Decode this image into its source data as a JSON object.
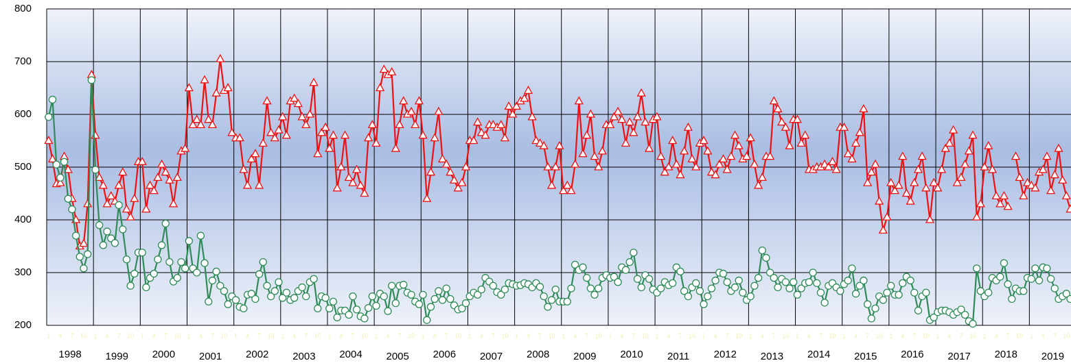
{
  "chart_data": {
    "type": "line",
    "ylim": [
      200,
      800
    ],
    "yticks": [
      200,
      300,
      400,
      500,
      600,
      700,
      800
    ],
    "grid": true,
    "years": [
      "1998",
      "1999",
      "2000",
      "2001",
      "2002",
      "2003",
      "2004",
      "2005",
      "2006",
      "2007",
      "2008",
      "2009",
      "2010",
      "2011",
      "2012",
      "2013",
      "2014",
      "2015",
      "2016",
      "2017",
      "2018",
      "2019"
    ],
    "categories": [
      "1",
      null,
      null,
      "4",
      null,
      null,
      "7",
      null,
      null,
      "10",
      null,
      null,
      "1",
      null,
      null,
      "4",
      null,
      null,
      "7",
      null,
      null,
      "10",
      null,
      null,
      "1",
      null,
      null,
      "4",
      null,
      null,
      "7",
      null,
      null,
      "10",
      null,
      null,
      "1",
      null,
      null,
      "4",
      null,
      null,
      "7",
      null,
      null,
      "10",
      null,
      null,
      "1",
      null,
      null,
      "4",
      null,
      null,
      "7",
      null,
      null,
      "10",
      null,
      null,
      "1",
      null,
      null,
      "4",
      null,
      null,
      "7",
      null,
      null,
      "10",
      null,
      null,
      "1",
      null,
      null,
      "4",
      null,
      null,
      "7",
      null,
      null,
      "10",
      null,
      null,
      "1",
      null,
      null,
      "4",
      null,
      null,
      "7",
      null,
      null,
      "10",
      null,
      null,
      "1",
      null,
      null,
      "4",
      null,
      null,
      "7",
      null,
      null,
      "10",
      null,
      null,
      "1",
      null,
      null,
      "4",
      null,
      null,
      "7",
      null,
      null,
      "10",
      null,
      null,
      "1",
      null,
      null,
      "4",
      null,
      null,
      "7",
      null,
      null,
      "10",
      null,
      null,
      "1",
      null,
      null,
      "4",
      null,
      null,
      "7",
      null,
      null,
      "10",
      null,
      null,
      "1",
      null,
      null,
      "4",
      null,
      null,
      "7",
      null,
      null,
      "10",
      null,
      null,
      "1",
      null,
      null,
      "4",
      null,
      null,
      "7",
      null,
      null,
      "10",
      null,
      null,
      "1",
      null,
      null,
      "4",
      null,
      null,
      "7",
      null,
      null,
      "10",
      null,
      null,
      "1",
      null,
      null,
      "4",
      null,
      null,
      "7",
      null,
      null,
      "10",
      null,
      null,
      "1",
      null,
      null,
      "4",
      null,
      null,
      "7",
      null,
      null,
      "10",
      null,
      null,
      "1",
      null,
      null,
      "4",
      null,
      null,
      "7",
      null,
      null,
      "10",
      null,
      null,
      "1",
      null,
      null,
      "4",
      null,
      null,
      "7",
      null,
      null,
      "10",
      null,
      null,
      "1",
      null,
      null,
      "4",
      null,
      null,
      "7",
      null,
      null,
      "10",
      null,
      null,
      "1",
      null,
      null,
      "4",
      null,
      null,
      "7",
      null,
      null,
      "10",
      null,
      null,
      "1",
      null,
      null,
      "4",
      null,
      null,
      "7",
      null,
      null,
      "10",
      null
    ],
    "series": [
      {
        "color": "#ee1111",
        "marker": "triangle",
        "values": [
          550,
          515,
          468,
          470,
          520,
          495,
          440,
          400,
          350,
          355,
          430,
          675,
          560,
          480,
          465,
          430,
          445,
          435,
          465,
          490,
          420,
          405,
          440,
          510,
          510,
          420,
          465,
          455,
          480,
          505,
          490,
          475,
          430,
          480,
          530,
          535,
          650,
          580,
          590,
          580,
          665,
          590,
          580,
          640,
          705,
          645,
          650,
          565,
          555,
          555,
          495,
          465,
          515,
          525,
          465,
          545,
          625,
          565,
          555,
          570,
          595,
          560,
          625,
          630,
          620,
          595,
          580,
          600,
          660,
          525,
          565,
          575,
          535,
          560,
          460,
          500,
          560,
          480,
          470,
          495,
          465,
          450,
          555,
          580,
          545,
          650,
          685,
          675,
          680,
          535,
          580,
          625,
          600,
          605,
          580,
          625,
          560,
          440,
          490,
          555,
          605,
          515,
          505,
          490,
          475,
          460,
          470,
          500,
          550,
          550,
          585,
          565,
          560,
          580,
          580,
          575,
          580,
          555,
          615,
          600,
          615,
          625,
          630,
          645,
          595,
          550,
          545,
          540,
          500,
          465,
          500,
          540,
          455,
          465,
          455,
          505,
          625,
          525,
          560,
          600,
          520,
          500,
          530,
          580,
          580,
          595,
          605,
          590,
          545,
          585,
          565,
          595,
          640,
          585,
          535,
          590,
          595,
          520,
          490,
          500,
          550,
          505,
          485,
          530,
          575,
          515,
          500,
          545,
          550,
          530,
          490,
          485,
          505,
          515,
          495,
          520,
          560,
          540,
          515,
          520,
          555,
          505,
          465,
          480,
          520,
          520,
          625,
          610,
          585,
          575,
          540,
          590,
          590,
          545,
          560,
          495,
          495,
          500,
          500,
          505,
          500,
          510,
          495,
          575,
          575,
          525,
          515,
          545,
          565,
          610,
          470,
          490,
          505,
          435,
          380,
          405,
          470,
          455,
          465,
          520,
          450,
          435,
          470,
          495,
          520,
          460,
          400,
          470,
          460,
          495,
          535,
          545,
          570,
          470,
          480,
          505,
          530,
          560,
          405,
          430,
          500,
          540,
          495,
          445,
          430,
          445,
          425,
          null,
          520,
          480,
          445,
          470,
          465,
          460,
          490,
          495,
          520,
          455,
          485,
          535,
          475,
          445,
          420
        ]
      },
      {
        "color": "#2e8b57",
        "marker": "circle",
        "values": [
          595,
          628,
          505,
          480,
          510,
          440,
          420,
          370,
          330,
          308,
          335,
          665,
          495,
          390,
          352,
          378,
          365,
          356,
          428,
          382,
          325,
          275,
          298,
          338,
          338,
          272,
          290,
          298,
          325,
          352,
          393,
          320,
          283,
          290,
          320,
          308,
          360,
          308,
          300,
          370,
          318,
          245,
          285,
          302,
          275,
          265,
          240,
          255,
          248,
          235,
          232,
          258,
          260,
          250,
          297,
          320,
          275,
          255,
          265,
          282,
          252,
          262,
          248,
          252,
          265,
          272,
          255,
          282,
          288,
          232,
          255,
          252,
          232,
          245,
          215,
          228,
          228,
          220,
          255,
          230,
          217,
          213,
          233,
          255,
          237,
          260,
          255,
          227,
          275,
          242,
          275,
          277,
          262,
          258,
          245,
          240,
          258,
          210,
          235,
          250,
          265,
          248,
          270,
          250,
          238,
          230,
          232,
          242,
          255,
          262,
          258,
          268,
          290,
          283,
          275,
          263,
          258,
          268,
          280,
          278,
          275,
          276,
          280,
          278,
          272,
          280,
          273,
          255,
          235,
          248,
          268,
          245,
          245,
          245,
          270,
          315,
          305,
          310,
          290,
          270,
          258,
          270,
          290,
          295,
          290,
          292,
          282,
          310,
          305,
          320,
          338,
          288,
          272,
          295,
          288,
          268,
          262,
          270,
          282,
          276,
          280,
          310,
          302,
          265,
          255,
          272,
          280,
          265,
          240,
          255,
          270,
          285,
          300,
          298,
          282,
          265,
          272,
          285,
          262,
          248,
          255,
          275,
          290,
          342,
          328,
          300,
          290,
          272,
          288,
          282,
          270,
          282,
          258,
          270,
          280,
          282,
          300,
          280,
          262,
          243,
          275,
          280,
          272,
          265,
          278,
          285,
          308,
          260,
          275,
          285,
          240,
          213,
          232,
          255,
          248,
          262,
          275,
          258,
          258,
          280,
          292,
          285,
          262,
          228,
          255,
          262,
          210,
          215,
          225,
          228,
          228,
          225,
          220,
          225,
          230,
          220,
          208,
          203,
          308,
          265,
          255,
          262,
          290,
          285,
          292,
          318,
          278,
          250,
          270,
          265,
          265,
          290,
          288,
          308,
          285,
          310,
          308,
          288,
          270,
          250,
          255,
          260,
          250
        ]
      }
    ]
  }
}
